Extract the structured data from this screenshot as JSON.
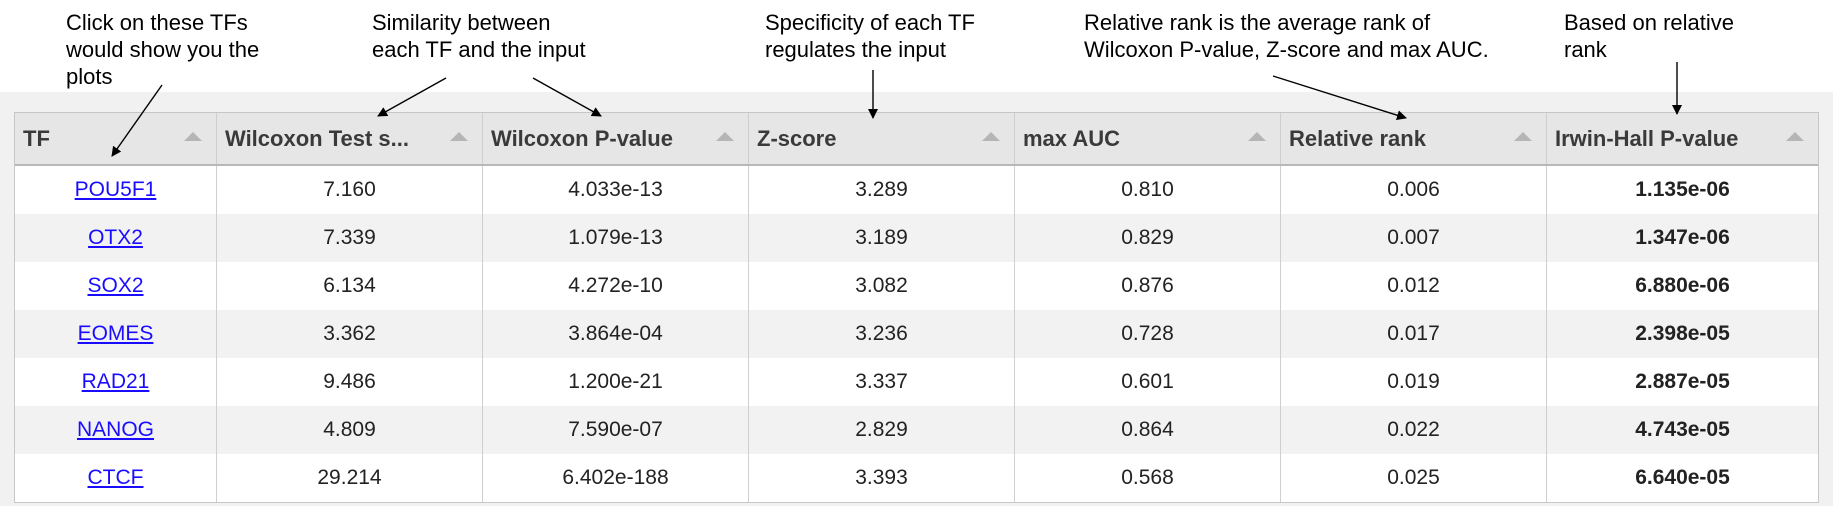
{
  "annotations": [
    {
      "id": "tf",
      "text": "Click on these TFs\nwould show you the\nplots"
    },
    {
      "id": "similarity",
      "text": "Similarity between\neach TF and the input"
    },
    {
      "id": "specificity",
      "text": "Specificity of each TF\nregulates the input"
    },
    {
      "id": "relative",
      "text": "Relative rank is the average rank of\nWilcoxon P-value, Z-score and max AUC."
    },
    {
      "id": "irwin",
      "text": "Based on relative\nrank"
    }
  ],
  "table": {
    "columns": [
      "TF",
      "Wilcoxon Test s...",
      "Wilcoxon P-value",
      "Z-score",
      "max AUC",
      "Relative rank",
      "Irwin-Hall P-value"
    ],
    "rows": [
      [
        "POU5F1",
        "7.160",
        "4.033e-13",
        "3.289",
        "0.810",
        "0.006",
        "1.135e-06"
      ],
      [
        "OTX2",
        "7.339",
        "1.079e-13",
        "3.189",
        "0.829",
        "0.007",
        "1.347e-06"
      ],
      [
        "SOX2",
        "6.134",
        "4.272e-10",
        "3.082",
        "0.876",
        "0.012",
        "6.880e-06"
      ],
      [
        "EOMES",
        "3.362",
        "3.864e-04",
        "3.236",
        "0.728",
        "0.017",
        "2.398e-05"
      ],
      [
        "RAD21",
        "9.486",
        "1.200e-21",
        "3.337",
        "0.601",
        "0.019",
        "2.887e-05"
      ],
      [
        "NANOG",
        "4.809",
        "7.590e-07",
        "2.829",
        "0.864",
        "0.022",
        "4.743e-05"
      ],
      [
        "CTCF",
        "29.214",
        "6.402e-188",
        "3.393",
        "0.568",
        "0.025",
        "6.640e-05"
      ]
    ]
  },
  "icons": {
    "sort": "sort-ascending-icon"
  },
  "colors": {
    "link": "#1a0dff",
    "header_bg": "#e6e6e6",
    "alt_row": "#f2f2f2"
  }
}
